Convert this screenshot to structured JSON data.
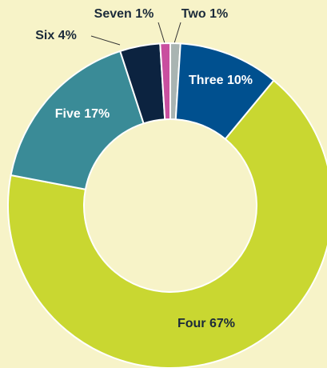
{
  "chart_data": {
    "type": "donut",
    "categories": [
      "Two",
      "Three",
      "Four",
      "Five",
      "Six",
      "Seven"
    ],
    "values": [
      1,
      10,
      67,
      17,
      4,
      1
    ],
    "value_labels": [
      "1%",
      "10%",
      "67%",
      "17%",
      "4%",
      "1%"
    ],
    "colors": [
      "#a9b4b2",
      "#00508f",
      "#c9d731",
      "#3a8b97",
      "#0c2340",
      "#c94f9f"
    ]
  }
}
